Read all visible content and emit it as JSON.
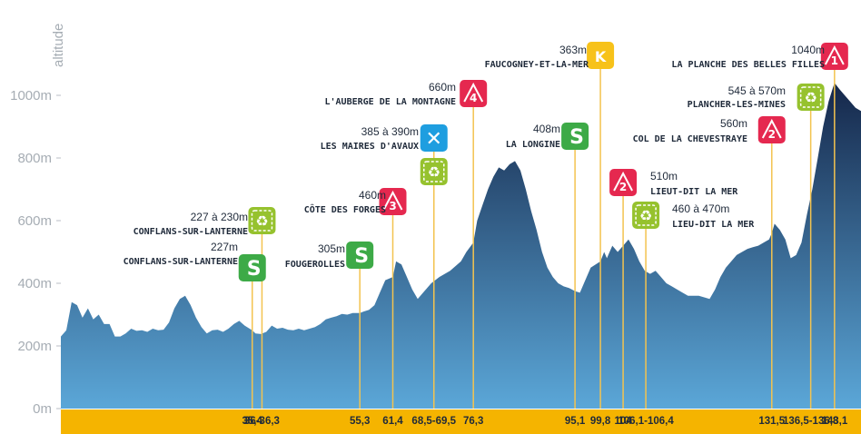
{
  "colors": {
    "profile_top": "#15274a",
    "profile_bottom": "#5ba7d8",
    "distance_band": "#f5b400",
    "marker_line": "#f3c34f",
    "climb": "#e5284f",
    "sprint": "#3daa47",
    "green_zone": "#96c22e",
    "bonus": "#f7c21a",
    "feed": "#1e9ee0",
    "axis_text": "#a6adb4"
  },
  "chart_data": {
    "type": "area",
    "title": "",
    "xlabel": "",
    "ylabel": "altitude",
    "ylim": [
      0,
      1100
    ],
    "xlim": [
      0,
      148
    ],
    "y_ticks": [
      {
        "value": 0,
        "label": "0m"
      },
      {
        "value": 200,
        "label": "200m"
      },
      {
        "value": 400,
        "label": "400m"
      },
      {
        "value": 600,
        "label": "600m"
      },
      {
        "value": 800,
        "label": "800m"
      },
      {
        "value": 1000,
        "label": "1000m"
      }
    ],
    "profile": {
      "x": [
        0,
        1,
        2,
        3,
        4,
        5,
        6,
        7,
        8,
        9,
        10,
        11,
        12,
        13,
        14,
        15,
        16,
        17,
        18,
        19,
        20,
        21,
        22,
        23,
        24,
        25,
        26,
        27,
        28,
        29,
        30,
        31,
        32,
        33,
        34,
        35.4,
        36,
        37,
        38,
        39,
        40,
        41,
        42,
        43,
        44,
        45,
        46,
        47,
        48,
        49,
        50,
        51,
        52,
        53,
        54,
        55.3,
        56,
        57,
        58,
        59,
        60,
        61.4,
        62,
        63,
        64,
        65,
        66,
        67,
        68.5,
        70,
        72,
        74,
        75,
        76.3,
        77,
        78,
        79,
        80,
        81,
        82,
        83,
        84,
        85,
        86,
        87,
        88,
        89,
        90,
        91,
        92,
        93,
        94,
        95.1,
        96,
        97,
        98,
        99.8,
        100.5,
        101,
        102,
        103,
        104,
        105,
        106,
        107,
        108,
        109,
        110,
        111,
        112,
        113,
        114,
        115,
        116,
        117,
        118,
        119,
        120,
        121,
        122,
        123,
        124,
        125,
        126,
        127,
        128,
        129,
        130,
        131,
        131.5,
        132,
        133,
        134,
        135,
        136,
        137,
        138,
        139,
        140,
        141,
        142,
        143.1,
        144,
        145,
        146,
        147,
        148
      ],
      "y": [
        230,
        250,
        340,
        330,
        290,
        320,
        285,
        300,
        270,
        270,
        230,
        230,
        240,
        255,
        248,
        250,
        245,
        255,
        250,
        252,
        275,
        320,
        350,
        360,
        330,
        290,
        260,
        240,
        250,
        252,
        245,
        255,
        270,
        280,
        265,
        250,
        240,
        238,
        245,
        265,
        255,
        258,
        252,
        250,
        255,
        250,
        255,
        260,
        270,
        285,
        290,
        295,
        302,
        300,
        305,
        305,
        310,
        315,
        330,
        370,
        410,
        420,
        470,
        460,
        420,
        380,
        350,
        370,
        400,
        420,
        440,
        470,
        500,
        530,
        600,
        650,
        700,
        740,
        770,
        760,
        780,
        790,
        760,
        700,
        630,
        570,
        500,
        450,
        420,
        400,
        390,
        385,
        375,
        370,
        410,
        450,
        470,
        500,
        480,
        520,
        500,
        520,
        540,
        510,
        470,
        440,
        430,
        440,
        420,
        400,
        390,
        380,
        370,
        360,
        360,
        360,
        355,
        350,
        380,
        420,
        450,
        470,
        490,
        500,
        510,
        515,
        520,
        530,
        540,
        560,
        590,
        570,
        540,
        480,
        490,
        530,
        620,
        700,
        800,
        900,
        980,
        1040,
        1020,
        1000,
        980,
        960,
        950
      ]
    },
    "km_markers": [
      {
        "x": 35.4,
        "label": "35,4"
      },
      {
        "x": 37.2,
        "label": "36-36,3"
      },
      {
        "x": 55.3,
        "label": "55,3"
      },
      {
        "x": 61.4,
        "label": "61,4"
      },
      {
        "x": 69.0,
        "label": "68,5-69,5"
      },
      {
        "x": 76.3,
        "label": "76,3"
      },
      {
        "x": 95.1,
        "label": "95,1"
      },
      {
        "x": 99.8,
        "label": "99,8"
      },
      {
        "x": 104.0,
        "label": "104"
      },
      {
        "x": 108.2,
        "label": "106,1-106,4"
      },
      {
        "x": 131.5,
        "label": "131,5"
      },
      {
        "x": 138.7,
        "label": "136,5-136,8"
      },
      {
        "x": 143.1,
        "label": "143,1"
      }
    ],
    "annotations": [
      {
        "kind": "sprint",
        "icon": "S",
        "alt": "227m",
        "place": "CONFLANS-SUR-LANTERNE"
      },
      {
        "kind": "green",
        "icon": "♻",
        "alt": "227 à 230m",
        "place": "CONFLANS-SUR-LANTERNE"
      },
      {
        "kind": "sprint",
        "icon": "S",
        "alt": "305m",
        "place": "FOUGEROLLES"
      },
      {
        "kind": "climb",
        "icon": "3",
        "alt": "460m",
        "place": "CÔTE DES FORGES"
      },
      {
        "kind": "feed",
        "icon": "✕",
        "alt": "385 à 390m",
        "place": "LES MAIRES D'AVAUX"
      },
      {
        "kind": "green",
        "icon": "♻",
        "alt": "",
        "place": ""
      },
      {
        "kind": "climb",
        "icon": "4",
        "alt": "660m",
        "place": "L'AUBERGE DE LA MONTAGNE"
      },
      {
        "kind": "sprint",
        "icon": "S",
        "alt": "408m",
        "place": "LA LONGINE"
      },
      {
        "kind": "bonus",
        "icon": "K",
        "alt": "363m",
        "place": "FAUCOGNEY-ET-LA-MER"
      },
      {
        "kind": "climb",
        "icon": "2",
        "alt": "510m",
        "place": "LIEUT-DIT LA MER"
      },
      {
        "kind": "green",
        "icon": "♻",
        "alt": "460 à 470m",
        "place": "LIEU-DIT LA MER"
      },
      {
        "kind": "climb",
        "icon": "2",
        "alt": "560m",
        "place": "COL DE LA CHEVESTRAYE"
      },
      {
        "kind": "green",
        "icon": "♻",
        "alt": "545 à 570m",
        "place": "PLANCHER-LES-MINES"
      },
      {
        "kind": "climb",
        "icon": "1",
        "alt": "1040m",
        "place": "LA PLANCHE DES BELLES FILLES"
      }
    ]
  }
}
